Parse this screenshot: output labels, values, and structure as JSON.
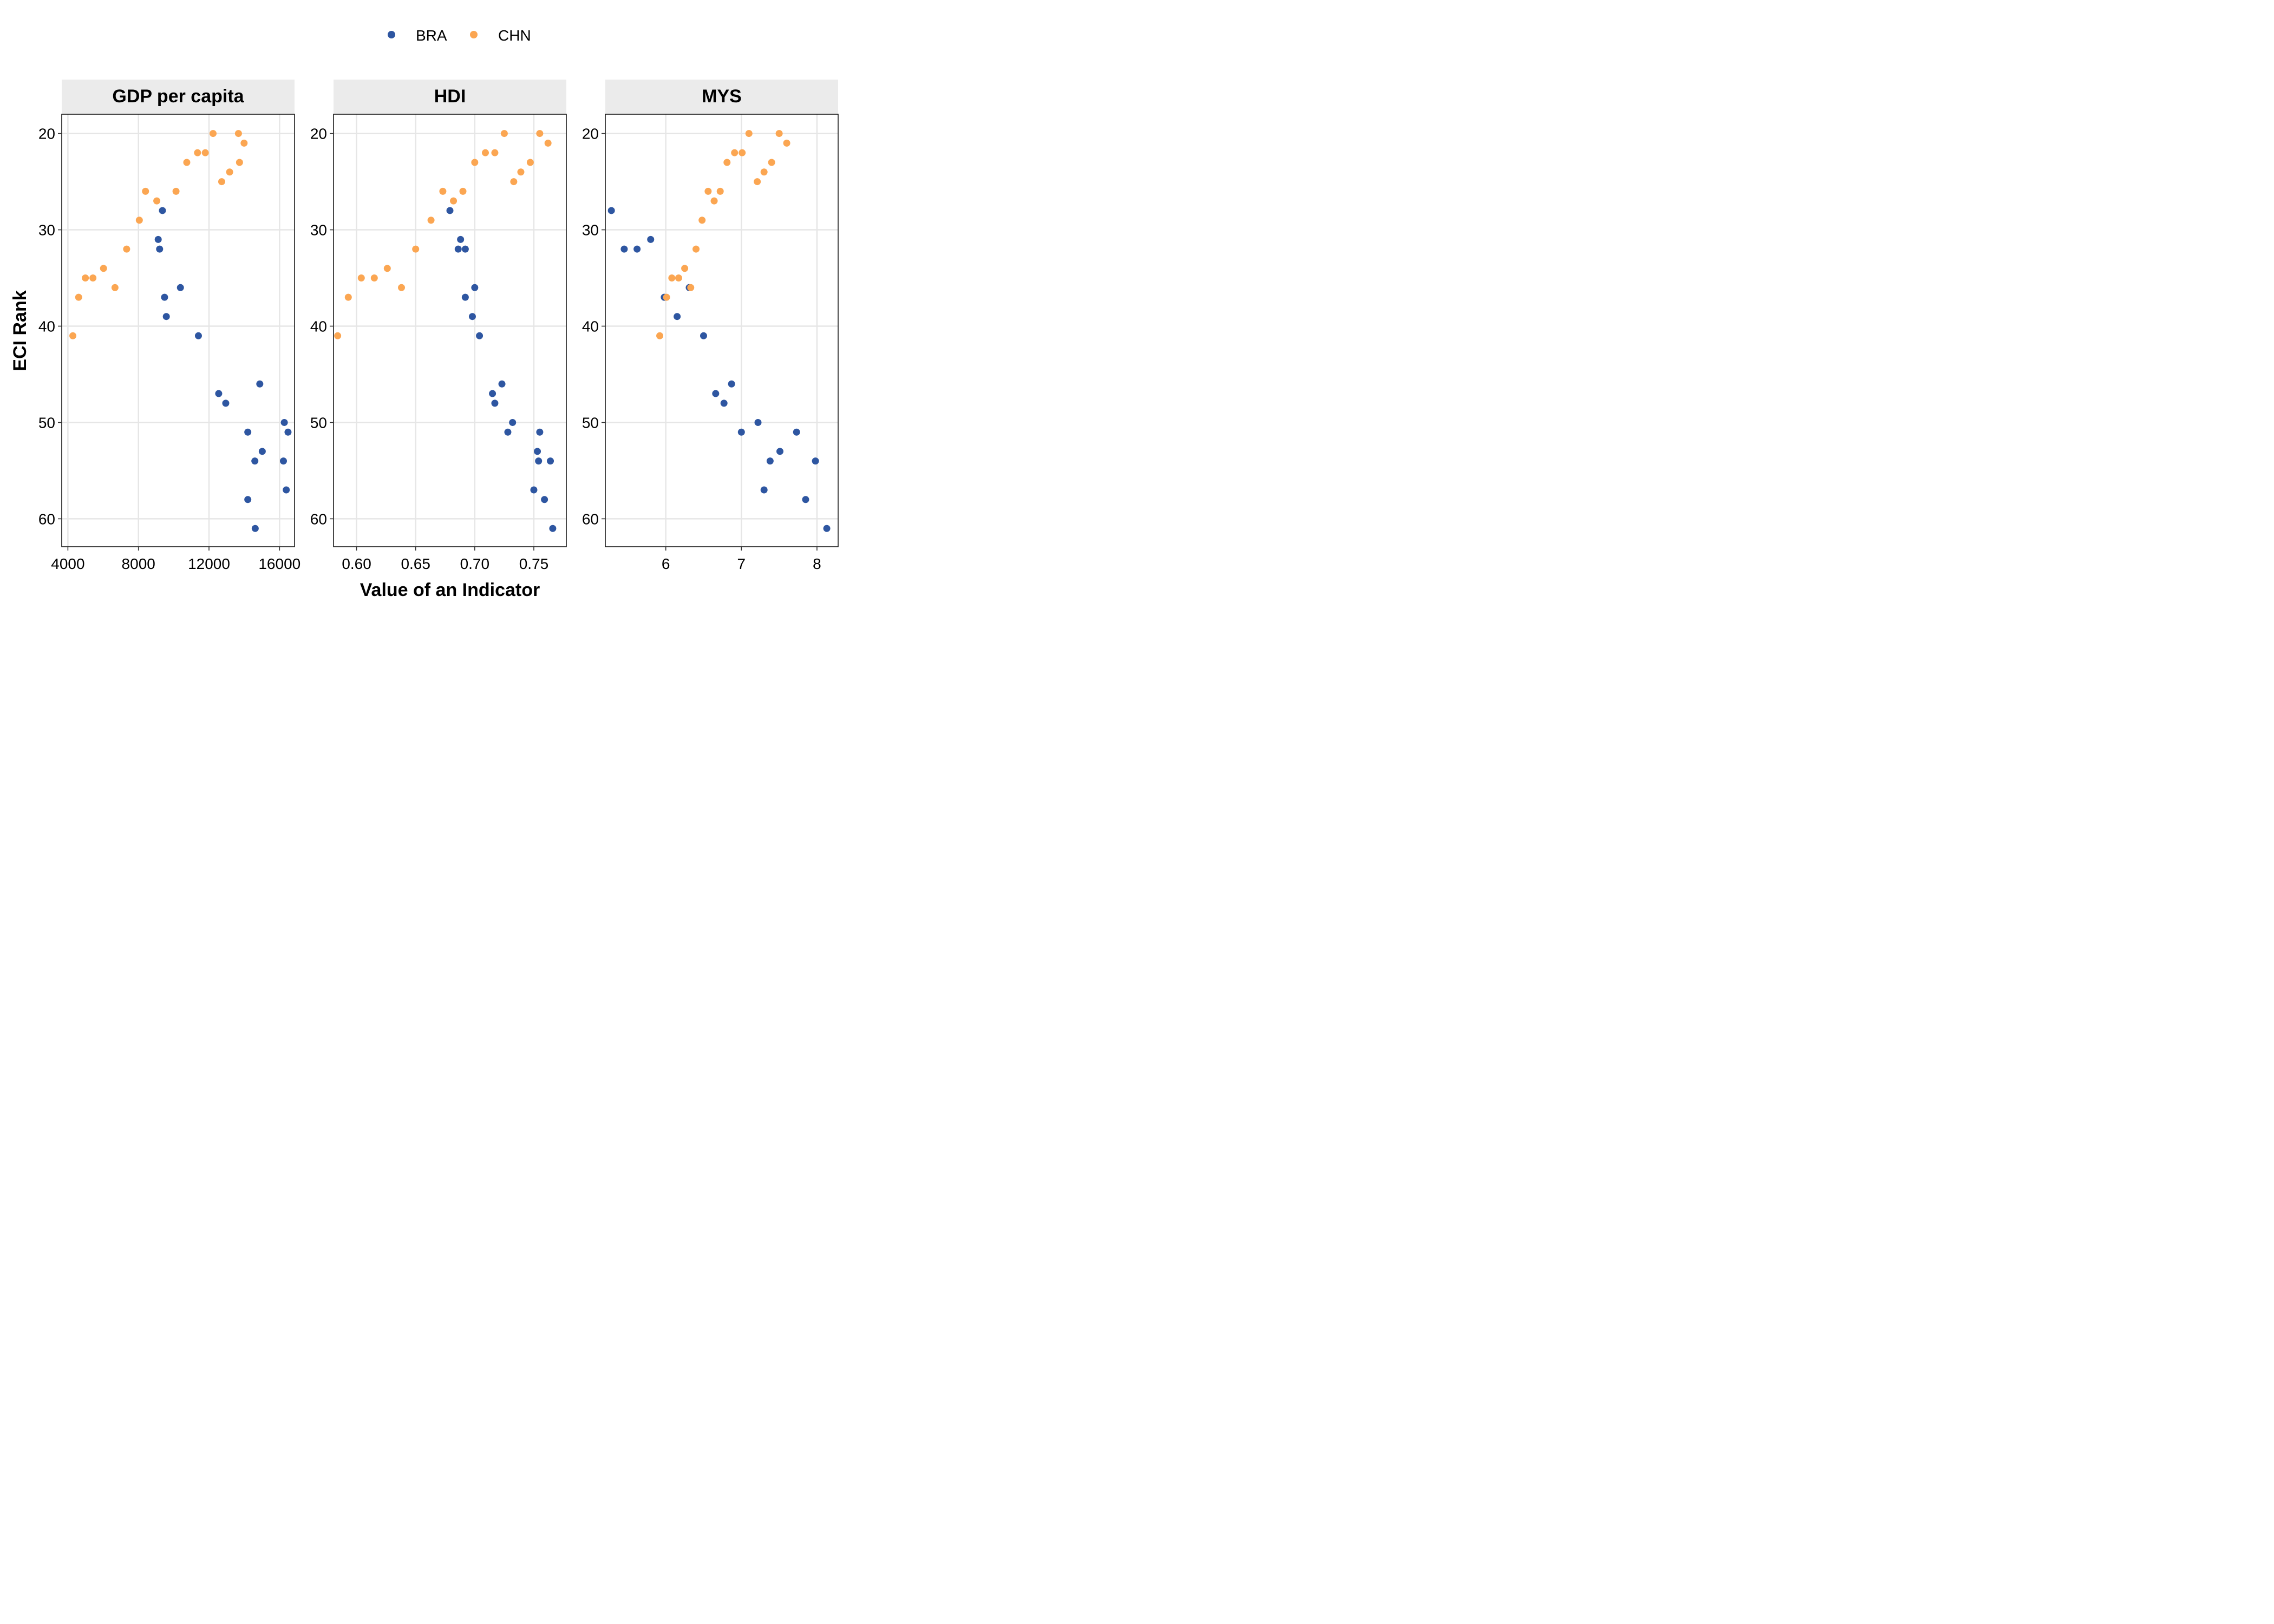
{
  "chart_data": {
    "type": "scatter",
    "xlabel": "Value of an Indicator",
    "ylabel": "ECI Rank",
    "y_reversed": true,
    "ylim": [
      62.9,
      18
    ],
    "yticks": [
      20,
      30,
      40,
      50,
      60
    ],
    "grid": true,
    "legend": {
      "position": "top",
      "entries": [
        {
          "name": "BRA",
          "color": "#2e56a1"
        },
        {
          "name": "CHN",
          "color": "#fba652"
        }
      ]
    },
    "panels": [
      {
        "title": "GDP per capita",
        "xlim": [
          3650,
          16850
        ],
        "xticks": [
          4000,
          8000,
          12000,
          16000
        ],
        "series": [
          {
            "name": "BRA",
            "points": [
              [
                9360,
                28
              ],
              [
                9120,
                31
              ],
              [
                9200,
                32
              ],
              [
                10380,
                36
              ],
              [
                9480,
                37
              ],
              [
                9580,
                39
              ],
              [
                11400,
                41
              ],
              [
                14880,
                46
              ],
              [
                12550,
                47
              ],
              [
                12950,
                48
              ],
              [
                16270,
                50
              ],
              [
                14200,
                51
              ],
              [
                16480,
                51
              ],
              [
                15020,
                53
              ],
              [
                14600,
                54
              ],
              [
                16220,
                54
              ],
              [
                16380,
                57
              ],
              [
                14200,
                58
              ],
              [
                14620,
                61
              ]
            ]
          },
          {
            "name": "CHN",
            "points": [
              [
                12230,
                20
              ],
              [
                13670,
                20
              ],
              [
                13990,
                21
              ],
              [
                11350,
                22
              ],
              [
                11790,
                22
              ],
              [
                10740,
                23
              ],
              [
                13730,
                23
              ],
              [
                13170,
                24
              ],
              [
                12720,
                25
              ],
              [
                8400,
                26
              ],
              [
                10130,
                26
              ],
              [
                9040,
                27
              ],
              [
                8050,
                29
              ],
              [
                7330,
                32
              ],
              [
                6020,
                34
              ],
              [
                4990,
                35
              ],
              [
                5420,
                35
              ],
              [
                6670,
                36
              ],
              [
                4610,
                37
              ],
              [
                4280,
                41
              ]
            ]
          }
        ]
      },
      {
        "title": "HDI",
        "xlim": [
          0.5805,
          0.7775
        ],
        "xticks": [
          0.6,
          0.65,
          0.7,
          0.75
        ],
        "xtick_labels": [
          "0.60",
          "0.65",
          "0.70",
          "0.75"
        ],
        "series": [
          {
            "name": "BRA",
            "points": [
              [
                0.679,
                28
              ],
              [
                0.688,
                31
              ],
              [
                0.686,
                32
              ],
              [
                0.692,
                32
              ],
              [
                0.7,
                36
              ],
              [
                0.692,
                37
              ],
              [
                0.698,
                39
              ],
              [
                0.704,
                41
              ],
              [
                0.723,
                46
              ],
              [
                0.715,
                47
              ],
              [
                0.717,
                48
              ],
              [
                0.732,
                50
              ],
              [
                0.728,
                51
              ],
              [
                0.755,
                51
              ],
              [
                0.753,
                53
              ],
              [
                0.754,
                54
              ],
              [
                0.764,
                54
              ],
              [
                0.75,
                57
              ],
              [
                0.759,
                58
              ],
              [
                0.766,
                61
              ]
            ]
          },
          {
            "name": "CHN",
            "points": [
              [
                0.725,
                20
              ],
              [
                0.755,
                20
              ],
              [
                0.762,
                21
              ],
              [
                0.709,
                22
              ],
              [
                0.717,
                22
              ],
              [
                0.7,
                23
              ],
              [
                0.747,
                23
              ],
              [
                0.739,
                24
              ],
              [
                0.733,
                25
              ],
              [
                0.673,
                26
              ],
              [
                0.69,
                26
              ],
              [
                0.682,
                27
              ],
              [
                0.663,
                29
              ],
              [
                0.65,
                32
              ],
              [
                0.626,
                34
              ],
              [
                0.604,
                35
              ],
              [
                0.615,
                35
              ],
              [
                0.638,
                36
              ],
              [
                0.593,
                37
              ],
              [
                0.584,
                41
              ]
            ]
          }
        ]
      },
      {
        "title": "MYS",
        "xlim": [
          5.2,
          8.28
        ],
        "xticks": [
          6,
          7,
          8
        ],
        "series": [
          {
            "name": "BRA",
            "points": [
              [
                5.28,
                28
              ],
              [
                5.8,
                31
              ],
              [
                5.45,
                32
              ],
              [
                5.62,
                32
              ],
              [
                6.31,
                36
              ],
              [
                5.98,
                37
              ],
              [
                6.15,
                39
              ],
              [
                6.5,
                41
              ],
              [
                6.87,
                46
              ],
              [
                6.66,
                47
              ],
              [
                6.77,
                48
              ],
              [
                7.22,
                50
              ],
              [
                7.0,
                51
              ],
              [
                7.73,
                51
              ],
              [
                7.51,
                53
              ],
              [
                7.38,
                54
              ],
              [
                7.98,
                54
              ],
              [
                7.3,
                57
              ],
              [
                7.85,
                58
              ],
              [
                8.13,
                61
              ]
            ]
          },
          {
            "name": "CHN",
            "points": [
              [
                7.1,
                20
              ],
              [
                7.5,
                20
              ],
              [
                7.6,
                21
              ],
              [
                6.91,
                22
              ],
              [
                7.01,
                22
              ],
              [
                6.81,
                23
              ],
              [
                7.4,
                23
              ],
              [
                7.3,
                24
              ],
              [
                7.21,
                25
              ],
              [
                6.56,
                26
              ],
              [
                6.72,
                26
              ],
              [
                6.64,
                27
              ],
              [
                6.48,
                29
              ],
              [
                6.4,
                32
              ],
              [
                6.25,
                34
              ],
              [
                6.08,
                35
              ],
              [
                6.17,
                35
              ],
              [
                6.33,
                36
              ],
              [
                6.01,
                37
              ],
              [
                5.92,
                41
              ]
            ]
          }
        ]
      }
    ]
  }
}
